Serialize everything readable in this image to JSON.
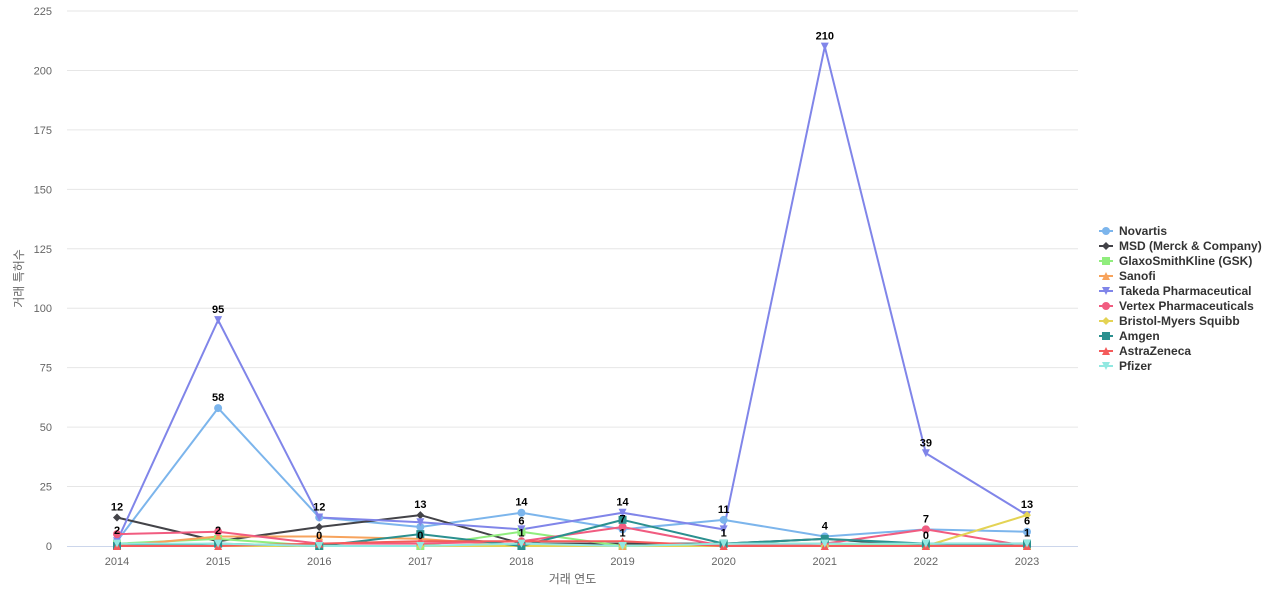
{
  "chart_data": {
    "type": "line",
    "x": [
      "2014",
      "2015",
      "2016",
      "2017",
      "2018",
      "2019",
      "2020",
      "2021",
      "2022",
      "2023"
    ],
    "xlabel": "거래 연도",
    "ylabel": "거래 특허수",
    "ylim": [
      0,
      225
    ],
    "yticks": [
      0,
      25,
      50,
      75,
      100,
      125,
      150,
      175,
      200,
      225
    ],
    "grid": true,
    "legend_position": "right",
    "series": [
      {
        "name": "Novartis",
        "color": "#7cb5ec",
        "marker": "circle",
        "values": [
          2,
          58,
          12,
          8,
          14,
          7,
          11,
          4,
          7,
          6
        ]
      },
      {
        "name": "MSD (Merck & Company)",
        "color": "#434348",
        "marker": "diamond",
        "values": [
          12,
          2,
          8,
          13,
          1,
          1,
          1,
          3,
          0,
          1
        ]
      },
      {
        "name": "GlaxoSmithKline (GSK)",
        "color": "#90ed7d",
        "marker": "square",
        "values": [
          1,
          3,
          0,
          0,
          6,
          0,
          1,
          1,
          0,
          0
        ]
      },
      {
        "name": "Sanofi",
        "color": "#f7a35c",
        "marker": "triangle",
        "values": [
          0,
          4,
          4,
          3,
          0,
          0,
          0,
          0,
          0,
          0
        ]
      },
      {
        "name": "Takeda Pharmaceutical",
        "color": "#8085e9",
        "marker": "triangle-down",
        "values": [
          2,
          95,
          12,
          10,
          7,
          14,
          7,
          210,
          39,
          13
        ]
      },
      {
        "name": "Vertex Pharmaceuticals",
        "color": "#f15c80",
        "marker": "circle",
        "values": [
          5,
          6,
          1,
          1,
          2,
          8,
          0,
          1,
          7,
          0
        ]
      },
      {
        "name": "Bristol-Myers Squibb",
        "color": "#e4d354",
        "marker": "diamond",
        "values": [
          0,
          0,
          0,
          0,
          0,
          0,
          0,
          0,
          0,
          13
        ]
      },
      {
        "name": "Amgen",
        "color": "#2b908f",
        "marker": "square",
        "values": [
          0,
          1,
          0,
          5,
          0,
          11,
          1,
          3,
          1,
          1
        ]
      },
      {
        "name": "AstraZeneca",
        "color": "#f45b5b",
        "marker": "triangle",
        "values": [
          0,
          0,
          1,
          2,
          2,
          2,
          0,
          0,
          0,
          0
        ]
      },
      {
        "name": "Pfizer",
        "color": "#91e8e1",
        "marker": "triangle-down",
        "values": [
          1,
          1,
          0,
          0,
          1,
          0,
          1,
          1,
          1,
          1
        ]
      }
    ],
    "data_labels": [
      {
        "x": "2014",
        "text": "12",
        "y": 12
      },
      {
        "x": "2014",
        "text": "2",
        "y": 2
      },
      {
        "x": "2015",
        "text": "95",
        "y": 95
      },
      {
        "x": "2015",
        "text": "58",
        "y": 58
      },
      {
        "x": "2015",
        "text": "2",
        "y": 2
      },
      {
        "x": "2016",
        "text": "12",
        "y": 12
      },
      {
        "x": "2016",
        "text": "0",
        "y": 0
      },
      {
        "x": "2017",
        "text": "13",
        "y": 13
      },
      {
        "x": "2017",
        "text": "0",
        "y": 0
      },
      {
        "x": "2018",
        "text": "14",
        "y": 14
      },
      {
        "x": "2018",
        "text": "6",
        "y": 6
      },
      {
        "x": "2018",
        "text": "1",
        "y": 1
      },
      {
        "x": "2019",
        "text": "14",
        "y": 14
      },
      {
        "x": "2019",
        "text": "7",
        "y": 7
      },
      {
        "x": "2019",
        "text": "1",
        "y": 1
      },
      {
        "x": "2020",
        "text": "11",
        "y": 11
      },
      {
        "x": "2020",
        "text": "1",
        "y": 1
      },
      {
        "x": "2021",
        "text": "210",
        "y": 210
      },
      {
        "x": "2021",
        "text": "4",
        "y": 4
      },
      {
        "x": "2022",
        "text": "39",
        "y": 39
      },
      {
        "x": "2022",
        "text": "7",
        "y": 7
      },
      {
        "x": "2022",
        "text": "0",
        "y": 0
      },
      {
        "x": "2023",
        "text": "13",
        "y": 13
      },
      {
        "x": "2023",
        "text": "6",
        "y": 6
      },
      {
        "x": "2023",
        "text": "1",
        "y": 1
      }
    ]
  }
}
